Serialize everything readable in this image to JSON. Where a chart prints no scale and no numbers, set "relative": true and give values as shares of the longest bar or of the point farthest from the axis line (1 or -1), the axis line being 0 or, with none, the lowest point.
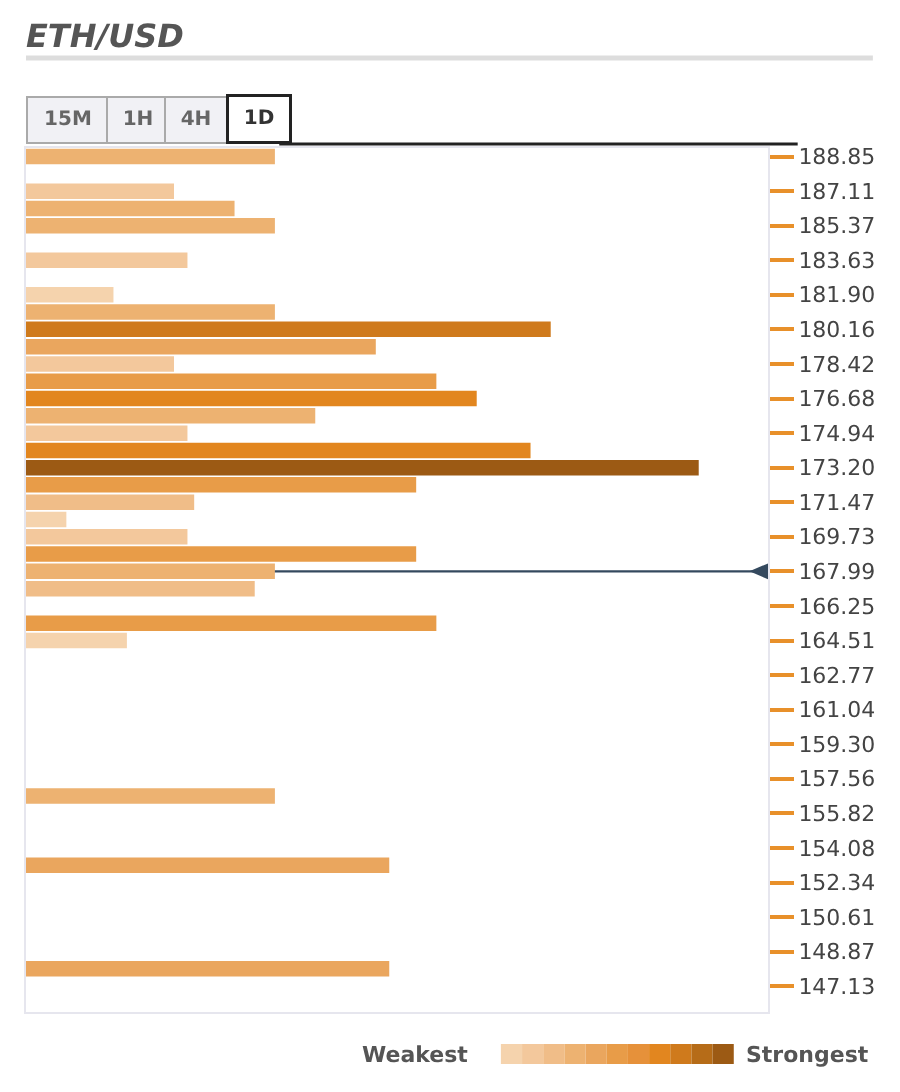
{
  "chart_data": {
    "type": "bar",
    "orientation": "horizontal",
    "relative": true,
    "title": "ETH/USD",
    "annotations": [
      "15M",
      "1H",
      "4H",
      "1D",
      "Weakest",
      "Strongest"
    ],
    "x": [
      188.85,
      187.11,
      186.24,
      185.37,
      183.63,
      181.9,
      181.03,
      180.16,
      179.29,
      178.42,
      177.55,
      176.68,
      175.81,
      174.94,
      174.07,
      173.2,
      172.34,
      171.47,
      170.6,
      169.73,
      168.86,
      167.99,
      167.12,
      165.38,
      164.51,
      156.69,
      153.21,
      148.0
    ],
    "values": [
      0.37,
      0.22,
      0.31,
      0.37,
      0.24,
      0.13,
      0.37,
      0.78,
      0.52,
      0.22,
      0.61,
      0.67,
      0.43,
      0.24,
      0.75,
      1,
      0.58,
      0.25,
      0.06,
      0.24,
      0.58,
      0.37,
      0.34,
      0.61,
      0.15,
      0.37,
      0.54,
      0.54
    ],
    "colors": [
      "#edb271",
      "#f3c89c",
      "#edb271",
      "#edb271",
      "#f3c89c",
      "#f5d3ad",
      "#edb271",
      "#cf7a1c",
      "#eaa65e",
      "#f3c89c",
      "#e89c48",
      "#e2861f",
      "#edb271",
      "#f3c89c",
      "#e2861f",
      "#9c5a14",
      "#e89c48",
      "#f0bd88",
      "#f5d3ad",
      "#f3c89c",
      "#e89c48",
      "#edb271",
      "#f0bd88",
      "#e89c48",
      "#f5d3ad",
      "#edb271",
      "#eaa65e",
      "#eaa65e"
    ],
    "ylim": [
      145.83,
      189.28
    ],
    "yticks": [
      188.85,
      187.11,
      185.37,
      183.63,
      {
        "value": 181.9,
        "label": "181.90"
      },
      180.16,
      178.42,
      176.68,
      174.94,
      {
        "value": 173.2,
        "label": "173.20"
      },
      171.47,
      169.73,
      167.99,
      166.25,
      164.51,
      162.77,
      161.04,
      {
        "value": 159.3,
        "label": "159.30"
      },
      157.56,
      155.82,
      154.08,
      152.34,
      150.61,
      148.87,
      147.13
    ],
    "ref_lines": [
      {
        "axis": "y",
        "value": 167.99,
        "color": "#34495e"
      }
    ],
    "grid": false
  }
}
